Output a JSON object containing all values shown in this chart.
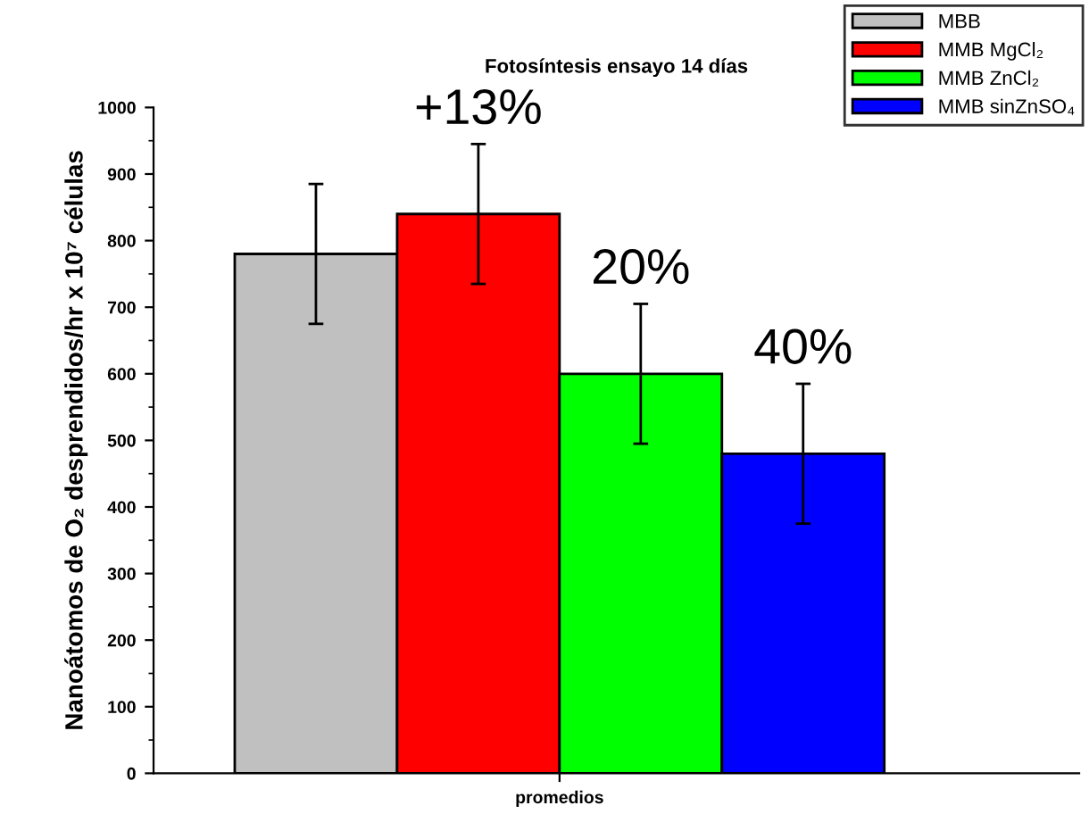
{
  "chart_data": {
    "type": "bar",
    "title": "Fotosíntesis ensayo 14 días",
    "ylabel": "Nanoátomos de O₂ desprendidos/hr x 10⁷ células",
    "categories": [
      "promedios"
    ],
    "series": [
      {
        "name": "MBB",
        "color": "#c0c0c0",
        "values": [
          780
        ],
        "errors": [
          105
        ]
      },
      {
        "name": "MMB MgCl₂",
        "color": "#ff0000",
        "values": [
          840
        ],
        "errors": [
          105
        ]
      },
      {
        "name": "MMB ZnCl₂",
        "color": "#00ff00",
        "values": [
          600
        ],
        "errors": [
          105
        ]
      },
      {
        "name": "MMB sinZnSO₄",
        "color": "#0000ff",
        "values": [
          480
        ],
        "errors": [
          105
        ]
      }
    ],
    "annotations": [
      "+13%",
      "20%",
      "40%"
    ],
    "ylim": [
      0,
      1000
    ],
    "yticks": [
      0,
      100,
      200,
      300,
      400,
      500,
      600,
      700,
      800,
      900,
      1000
    ],
    "grid": false,
    "legend": "top right"
  }
}
